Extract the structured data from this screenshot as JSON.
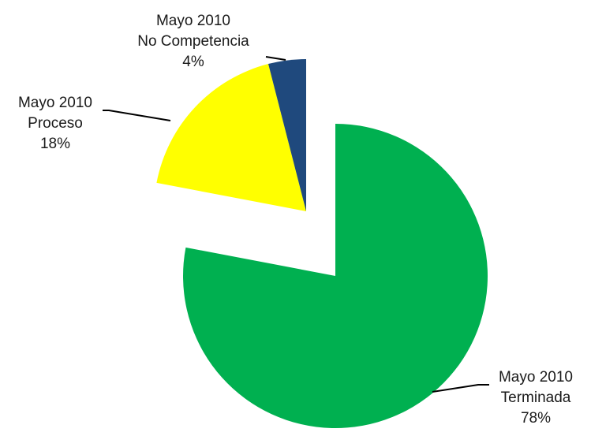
{
  "chart_data": {
    "type": "pie",
    "exploded": true,
    "slices": [
      {
        "period": "Mayo 2010",
        "name": "Terminada",
        "value": 78,
        "percent_label": "78%",
        "color": "#00b050"
      },
      {
        "period": "Mayo 2010",
        "name": "Proceso",
        "value": 18,
        "percent_label": "18%",
        "color": "#ffff00"
      },
      {
        "period": "Mayo 2010",
        "name": "No Competencia",
        "value": 4,
        "percent_label": "4%",
        "color": "#1f497d"
      }
    ],
    "legend": "none"
  }
}
